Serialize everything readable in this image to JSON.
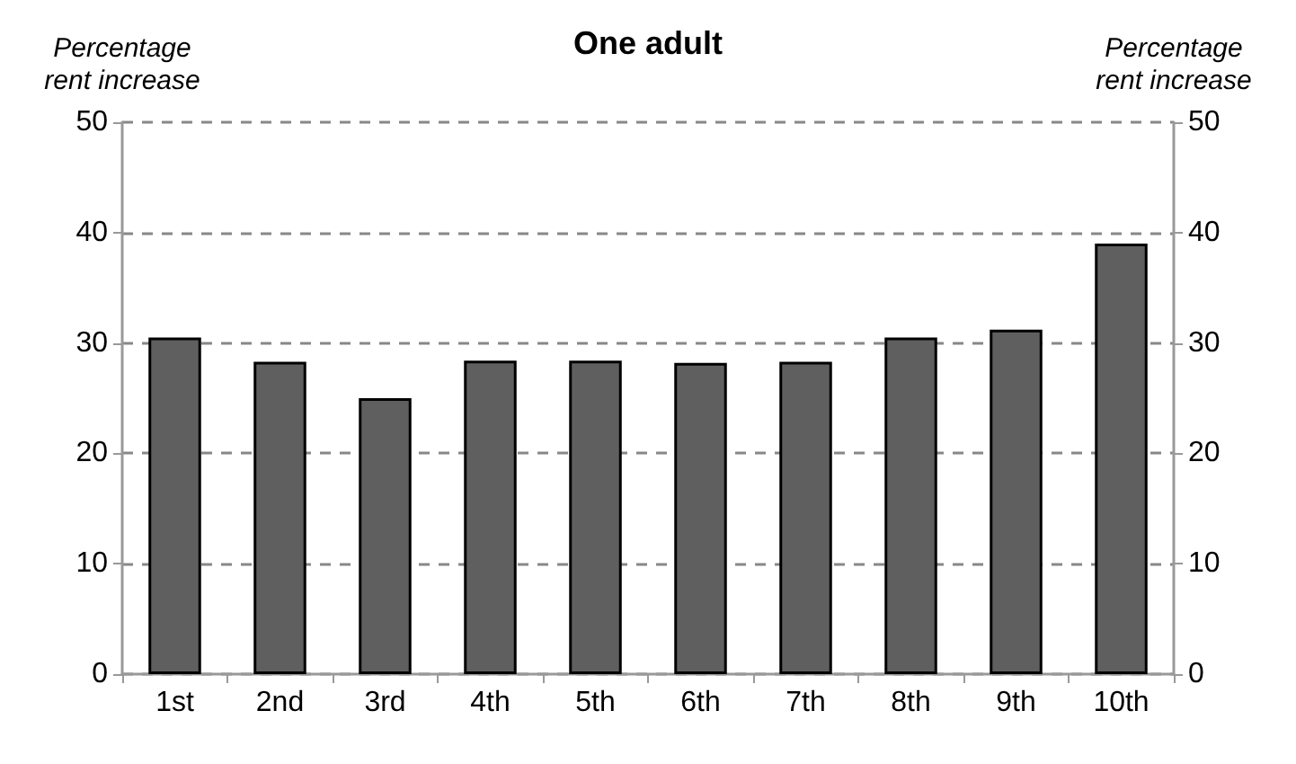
{
  "chart_data": {
    "type": "bar",
    "title": "One adult",
    "ylabel": "Percentage\nrent increase",
    "y2label": "Percentage\nrent increase",
    "categories": [
      "1st",
      "2nd",
      "3rd",
      "4th",
      "5th",
      "6th",
      "7th",
      "8th",
      "9th",
      "10th"
    ],
    "values": [
      30.5,
      28.3,
      25.0,
      28.4,
      28.4,
      28.2,
      28.3,
      30.5,
      31.2,
      39.0
    ],
    "color": "#5f5f5f",
    "ylim": [
      0,
      50
    ],
    "yticks": [
      0,
      10,
      20,
      30,
      40,
      50
    ],
    "y2lim": [
      0,
      50
    ],
    "y2ticks": [
      0,
      10,
      20,
      30,
      40,
      50
    ],
    "grid": "y"
  }
}
